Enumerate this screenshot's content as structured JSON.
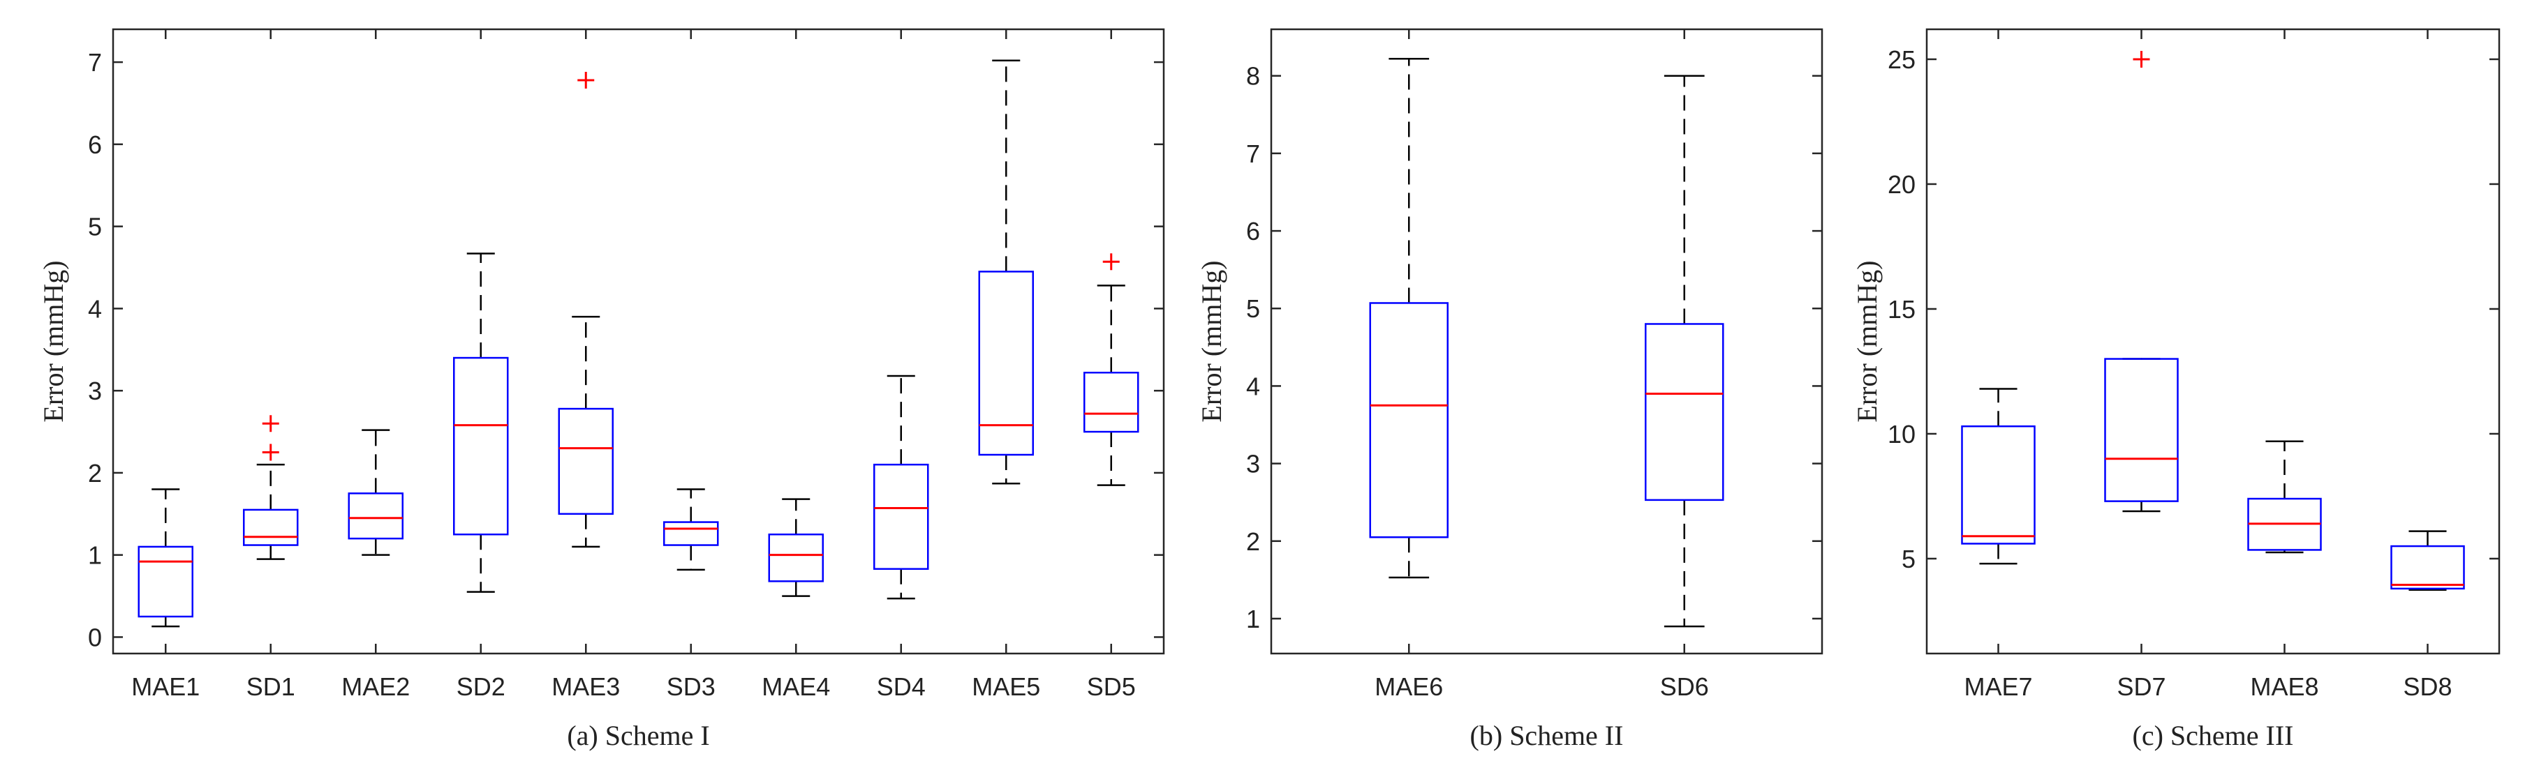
{
  "chart_data": [
    {
      "type": "box",
      "caption": "(a) Scheme I",
      "ylabel": "Error (mmHg)",
      "ylim": [
        -0.2,
        7.4
      ],
      "yticks": [
        0,
        1,
        2,
        3,
        4,
        5,
        6,
        7
      ],
      "colors": {
        "box": "#0000ff",
        "median": "#ff0000",
        "whisker": "#000000",
        "outlier": "#ff0000"
      },
      "boxes": [
        {
          "label": "MAE1",
          "min": 0.13,
          "q1": 0.25,
          "median": 0.92,
          "q3": 1.1,
          "max": 1.8,
          "outliers": []
        },
        {
          "label": "SD1",
          "min": 0.95,
          "q1": 1.12,
          "median": 1.22,
          "q3": 1.55,
          "max": 2.1,
          "outliers": [
            2.25,
            2.6
          ]
        },
        {
          "label": "MAE2",
          "min": 1.0,
          "q1": 1.2,
          "median": 1.45,
          "q3": 1.75,
          "max": 2.52,
          "outliers": []
        },
        {
          "label": "SD2",
          "min": 0.55,
          "q1": 1.25,
          "median": 2.58,
          "q3": 3.4,
          "max": 4.67,
          "outliers": []
        },
        {
          "label": "MAE3",
          "min": 1.1,
          "q1": 1.5,
          "median": 2.3,
          "q3": 2.78,
          "max": 3.9,
          "outliers": [
            6.78
          ]
        },
        {
          "label": "SD3",
          "min": 0.82,
          "q1": 1.12,
          "median": 1.32,
          "q3": 1.4,
          "max": 1.8,
          "outliers": []
        },
        {
          "label": "MAE4",
          "min": 0.5,
          "q1": 0.68,
          "median": 1.0,
          "q3": 1.25,
          "max": 1.68,
          "outliers": []
        },
        {
          "label": "SD4",
          "min": 0.47,
          "q1": 0.83,
          "median": 1.57,
          "q3": 2.1,
          "max": 3.18,
          "outliers": []
        },
        {
          "label": "MAE5",
          "min": 1.87,
          "q1": 2.22,
          "median": 2.58,
          "q3": 4.45,
          "max": 7.02,
          "outliers": []
        },
        {
          "label": "SD5",
          "min": 1.85,
          "q1": 2.5,
          "median": 2.72,
          "q3": 3.22,
          "max": 4.28,
          "outliers": [
            4.57
          ]
        }
      ]
    },
    {
      "type": "box",
      "caption": "(b) Scheme II",
      "ylabel": "Error (mmHg)",
      "ylim": [
        0.55,
        8.6
      ],
      "yticks": [
        1,
        2,
        3,
        4,
        5,
        6,
        7,
        8
      ],
      "colors": {
        "box": "#0000ff",
        "median": "#ff0000",
        "whisker": "#000000",
        "outlier": "#ff0000"
      },
      "boxes": [
        {
          "label": "MAE6",
          "min": 1.53,
          "q1": 2.05,
          "median": 3.75,
          "q3": 5.07,
          "max": 8.22,
          "outliers": []
        },
        {
          "label": "SD6",
          "min": 0.9,
          "q1": 2.53,
          "median": 3.9,
          "q3": 4.8,
          "max": 8.0,
          "outliers": []
        }
      ]
    },
    {
      "type": "box",
      "caption": "(c) Scheme III",
      "ylabel": "Error (mmHg)",
      "ylim": [
        1.2,
        26.2
      ],
      "yticks": [
        5,
        10,
        15,
        20,
        25
      ],
      "colors": {
        "box": "#0000ff",
        "median": "#ff0000",
        "whisker": "#000000",
        "outlier": "#ff0000"
      },
      "boxes": [
        {
          "label": "MAE7",
          "min": 4.8,
          "q1": 5.6,
          "median": 5.9,
          "q3": 10.3,
          "max": 11.8,
          "outliers": []
        },
        {
          "label": "SD7",
          "min": 6.9,
          "q1": 7.3,
          "median": 9.0,
          "q3": 13.0,
          "max": 13.0,
          "outliers": [
            25.0
          ]
        },
        {
          "label": "MAE8",
          "min": 5.25,
          "q1": 5.35,
          "median": 6.4,
          "q3": 7.4,
          "max": 9.7,
          "outliers": []
        },
        {
          "label": "SD8",
          "min": 3.75,
          "q1": 3.8,
          "median": 3.95,
          "q3": 5.5,
          "max": 6.1,
          "outliers": []
        }
      ]
    }
  ]
}
